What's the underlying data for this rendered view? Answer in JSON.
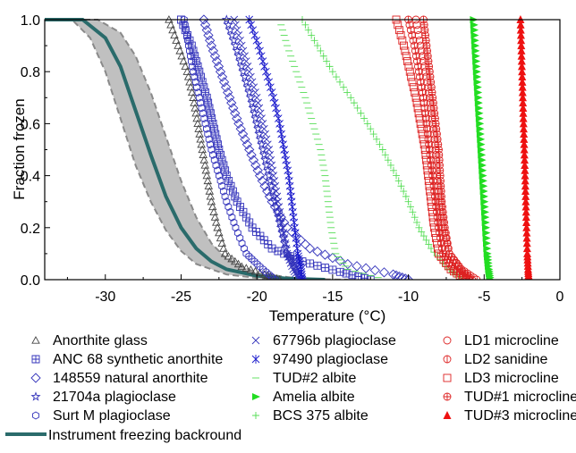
{
  "chart_data": {
    "type": "scatter",
    "title": "",
    "xlabel": "Temperature (°C)",
    "ylabel": "Fraction frozen",
    "xlim": [
      -34,
      0
    ],
    "ylim": [
      0,
      1.0
    ],
    "x_ticks": [
      "-30",
      "-25",
      "-20",
      "-15",
      "-10",
      "-5",
      "0"
    ],
    "y_ticks": [
      "0.0",
      "0.2",
      "0.4",
      "0.6",
      "0.8",
      "1.0"
    ],
    "grid": false,
    "legend_position": "below plot, three columns",
    "background_band": {
      "name": "Instrument freezing backround",
      "color": "#2a6b6b",
      "band_color": "#c0c0c0",
      "center": [
        [
          -34,
          1.0
        ],
        [
          -31.5,
          1.0
        ],
        [
          -30,
          0.93
        ],
        [
          -29,
          0.82
        ],
        [
          -28,
          0.65
        ],
        [
          -27,
          0.48
        ],
        [
          -26,
          0.32
        ],
        [
          -25,
          0.2
        ],
        [
          -24,
          0.12
        ],
        [
          -23,
          0.07
        ],
        [
          -22,
          0.04
        ],
        [
          -20,
          0.015
        ],
        [
          -18,
          0.004
        ],
        [
          -15.5,
          0.0
        ]
      ],
      "lower": [
        [
          -34,
          1.0
        ],
        [
          -32.2,
          1.0
        ],
        [
          -31,
          0.93
        ],
        [
          -30,
          0.8
        ],
        [
          -29,
          0.62
        ],
        [
          -28,
          0.44
        ],
        [
          -27,
          0.3
        ],
        [
          -26,
          0.19
        ],
        [
          -25,
          0.11
        ],
        [
          -24,
          0.06
        ],
        [
          -22,
          0.02
        ],
        [
          -19,
          0.0
        ]
      ],
      "upper": [
        [
          -34,
          1.0
        ],
        [
          -30.5,
          1.0
        ],
        [
          -29,
          0.95
        ],
        [
          -28,
          0.86
        ],
        [
          -27,
          0.72
        ],
        [
          -26,
          0.55
        ],
        [
          -25,
          0.38
        ],
        [
          -24,
          0.24
        ],
        [
          -23,
          0.14
        ],
        [
          -22,
          0.08
        ],
        [
          -20,
          0.025
        ],
        [
          -17,
          0.003
        ],
        [
          -14,
          0.0
        ]
      ]
    },
    "series": [
      {
        "name": "Anorthite glass",
        "marker": "triangle-open",
        "color": "#444444",
        "points": [
          [
            -25.8,
            1.0
          ],
          [
            -25.2,
            0.9
          ],
          [
            -24.6,
            0.8
          ],
          [
            -24.2,
            0.7
          ],
          [
            -23.9,
            0.6
          ],
          [
            -23.6,
            0.5
          ],
          [
            -23.3,
            0.4
          ],
          [
            -23.0,
            0.3
          ],
          [
            -22.6,
            0.2
          ],
          [
            -22.1,
            0.1
          ],
          [
            -21.0,
            0.05
          ],
          [
            -19.5,
            0.02
          ],
          [
            -18.5,
            0.0
          ]
        ]
      },
      {
        "name": "ANC 68 synthetic anorthite",
        "marker": "square-plus",
        "color": "#3333bb",
        "points": [
          [
            -25.0,
            1.0
          ],
          [
            -24.3,
            0.9
          ],
          [
            -23.8,
            0.8
          ],
          [
            -23.3,
            0.7
          ],
          [
            -22.9,
            0.6
          ],
          [
            -22.5,
            0.5
          ],
          [
            -22.0,
            0.4
          ],
          [
            -21.3,
            0.3
          ],
          [
            -20.3,
            0.2
          ],
          [
            -19.0,
            0.12
          ],
          [
            -17.0,
            0.07
          ],
          [
            -14.5,
            0.03
          ],
          [
            -12.5,
            0.0
          ]
        ]
      },
      {
        "name": "148559 natural anorthite",
        "marker": "diamond-open",
        "color": "#3333bb",
        "points": [
          [
            -23.5,
            1.0
          ],
          [
            -23.0,
            0.9
          ],
          [
            -22.4,
            0.8
          ],
          [
            -21.8,
            0.7
          ],
          [
            -21.2,
            0.6
          ],
          [
            -20.5,
            0.5
          ],
          [
            -19.8,
            0.4
          ],
          [
            -19.0,
            0.3
          ],
          [
            -18.0,
            0.2
          ],
          [
            -16.5,
            0.12
          ],
          [
            -14.0,
            0.06
          ],
          [
            -11.0,
            0.02
          ],
          [
            -10.0,
            0.0
          ]
        ]
      },
      {
        "name": "21704a plagioclase",
        "marker": "star-open",
        "color": "#3333bb",
        "points": [
          [
            -22.0,
            1.0
          ],
          [
            -21.4,
            0.9
          ],
          [
            -20.9,
            0.8
          ],
          [
            -20.4,
            0.7
          ],
          [
            -20.0,
            0.6
          ],
          [
            -19.6,
            0.5
          ],
          [
            -19.2,
            0.4
          ],
          [
            -18.8,
            0.3
          ],
          [
            -18.4,
            0.2
          ],
          [
            -18.0,
            0.1
          ],
          [
            -17.5,
            0.05
          ],
          [
            -17.0,
            0.0
          ]
        ]
      },
      {
        "name": "Surt M plagioclase",
        "marker": "hexagon-open",
        "color": "#3333bb",
        "points": [
          [
            -24.8,
            1.0
          ],
          [
            -24.5,
            0.9
          ],
          [
            -24.2,
            0.8
          ],
          [
            -23.8,
            0.7
          ],
          [
            -23.4,
            0.6
          ],
          [
            -23.0,
            0.5
          ],
          [
            -22.5,
            0.4
          ],
          [
            -22.0,
            0.3
          ],
          [
            -21.4,
            0.2
          ],
          [
            -20.7,
            0.1
          ],
          [
            -19.8,
            0.05
          ],
          [
            -18.8,
            0.0
          ]
        ]
      },
      {
        "name": "67796b plagioclase",
        "marker": "x",
        "color": "#3333bb",
        "points": [
          [
            -21.5,
            1.0
          ],
          [
            -21.0,
            0.9
          ],
          [
            -20.5,
            0.8
          ],
          [
            -20.0,
            0.7
          ],
          [
            -19.6,
            0.6
          ],
          [
            -19.2,
            0.5
          ],
          [
            -18.9,
            0.4
          ],
          [
            -18.6,
            0.3
          ],
          [
            -18.3,
            0.2
          ],
          [
            -18.0,
            0.1
          ],
          [
            -17.6,
            0.04
          ],
          [
            -17.2,
            0.0
          ]
        ]
      },
      {
        "name": "97490 plagioclase",
        "marker": "asterisk",
        "color": "#1a1acc",
        "points": [
          [
            -20.5,
            1.0
          ],
          [
            -19.9,
            0.9
          ],
          [
            -19.4,
            0.8
          ],
          [
            -18.9,
            0.7
          ],
          [
            -18.5,
            0.6
          ],
          [
            -18.2,
            0.5
          ],
          [
            -17.9,
            0.4
          ],
          [
            -17.7,
            0.3
          ],
          [
            -17.5,
            0.2
          ],
          [
            -17.3,
            0.1
          ],
          [
            -17.1,
            0.05
          ],
          [
            -17.0,
            0.0
          ]
        ]
      },
      {
        "name": "TUD#2 albite",
        "marker": "dash",
        "color": "#55dd55",
        "points": [
          [
            -18.5,
            1.0
          ],
          [
            -18.0,
            0.9
          ],
          [
            -17.4,
            0.8
          ],
          [
            -16.8,
            0.7
          ],
          [
            -16.3,
            0.6
          ],
          [
            -15.8,
            0.5
          ],
          [
            -15.5,
            0.4
          ],
          [
            -15.3,
            0.3
          ],
          [
            -15.1,
            0.2
          ],
          [
            -14.8,
            0.1
          ],
          [
            -14.0,
            0.04
          ],
          [
            -11.5,
            0.0
          ]
        ]
      },
      {
        "name": "Amelia albite",
        "marker": "triangle-right-filled",
        "color": "#22dd22",
        "points": [
          [
            -5.7,
            1.0
          ],
          [
            -5.6,
            0.9
          ],
          [
            -5.5,
            0.8
          ],
          [
            -5.4,
            0.7
          ],
          [
            -5.3,
            0.6
          ],
          [
            -5.2,
            0.5
          ],
          [
            -5.1,
            0.4
          ],
          [
            -5.0,
            0.3
          ],
          [
            -4.9,
            0.2
          ],
          [
            -4.8,
            0.1
          ],
          [
            -4.7,
            0.04
          ],
          [
            -4.6,
            0.0
          ]
        ]
      },
      {
        "name": "BCS 375 albite",
        "marker": "plus",
        "color": "#55dd55",
        "points": [
          [
            -17.0,
            1.0
          ],
          [
            -16.0,
            0.9
          ],
          [
            -15.0,
            0.8
          ],
          [
            -13.8,
            0.7
          ],
          [
            -12.7,
            0.6
          ],
          [
            -11.7,
            0.5
          ],
          [
            -10.8,
            0.4
          ],
          [
            -10.0,
            0.3
          ],
          [
            -9.3,
            0.2
          ],
          [
            -8.5,
            0.12
          ],
          [
            -7.5,
            0.05
          ],
          [
            -6.5,
            0.0
          ]
        ]
      },
      {
        "name": "LD1 microcline",
        "marker": "circle-open",
        "color": "#dd2222",
        "points": [
          [
            -9.5,
            1.0
          ],
          [
            -9.2,
            0.9
          ],
          [
            -8.9,
            0.8
          ],
          [
            -8.6,
            0.7
          ],
          [
            -8.4,
            0.6
          ],
          [
            -8.2,
            0.5
          ],
          [
            -8.1,
            0.4
          ],
          [
            -7.9,
            0.3
          ],
          [
            -7.7,
            0.2
          ],
          [
            -7.3,
            0.1
          ],
          [
            -6.5,
            0.04
          ],
          [
            -5.5,
            0.0
          ]
        ]
      },
      {
        "name": "LD2 sanidine",
        "marker": "circle-plus",
        "color": "#dd2222",
        "points": [
          [
            -10.0,
            1.0
          ],
          [
            -9.6,
            0.9
          ],
          [
            -9.3,
            0.8
          ],
          [
            -9.0,
            0.7
          ],
          [
            -8.8,
            0.6
          ],
          [
            -8.6,
            0.5
          ],
          [
            -8.4,
            0.4
          ],
          [
            -8.2,
            0.3
          ],
          [
            -8.0,
            0.2
          ],
          [
            -7.7,
            0.1
          ],
          [
            -7.0,
            0.04
          ],
          [
            -6.0,
            0.0
          ]
        ]
      },
      {
        "name": "LD3 microcline",
        "marker": "square-open",
        "color": "#dd2222",
        "points": [
          [
            -10.8,
            1.0
          ],
          [
            -10.3,
            0.9
          ],
          [
            -9.9,
            0.8
          ],
          [
            -9.5,
            0.7
          ],
          [
            -9.2,
            0.6
          ],
          [
            -8.9,
            0.5
          ],
          [
            -8.7,
            0.4
          ],
          [
            -8.5,
            0.3
          ],
          [
            -8.3,
            0.2
          ],
          [
            -8.0,
            0.1
          ],
          [
            -7.2,
            0.04
          ],
          [
            -6.2,
            0.0
          ]
        ]
      },
      {
        "name": "TUD#1 microcline",
        "marker": "circle-cross",
        "color": "#dd2222",
        "points": [
          [
            -9.0,
            1.0
          ],
          [
            -8.8,
            0.9
          ],
          [
            -8.6,
            0.8
          ],
          [
            -8.4,
            0.7
          ],
          [
            -8.2,
            0.6
          ],
          [
            -8.0,
            0.5
          ],
          [
            -7.9,
            0.4
          ],
          [
            -7.8,
            0.3
          ],
          [
            -7.6,
            0.2
          ],
          [
            -7.3,
            0.1
          ],
          [
            -6.6,
            0.04
          ],
          [
            -5.8,
            0.0
          ]
        ]
      },
      {
        "name": "TUD#3 microcline",
        "marker": "triangle-filled",
        "color": "#ee1111",
        "points": [
          [
            -2.6,
            1.0
          ],
          [
            -2.55,
            0.9
          ],
          [
            -2.5,
            0.8
          ],
          [
            -2.45,
            0.7
          ],
          [
            -2.4,
            0.6
          ],
          [
            -2.35,
            0.5
          ],
          [
            -2.3,
            0.4
          ],
          [
            -2.25,
            0.3
          ],
          [
            -2.2,
            0.2
          ],
          [
            -2.15,
            0.1
          ],
          [
            -2.1,
            0.04
          ],
          [
            -2.05,
            0.0
          ]
        ]
      }
    ],
    "legend_columns": [
      [
        "Anorthite glass",
        "ANC 68 synthetic anorthite",
        "148559 natural anorthite",
        "21704a plagioclase",
        "Surt M plagioclase"
      ],
      [
        "67796b plagioclase",
        "97490 plagioclase",
        "TUD#2 albite",
        "Amelia albite",
        "BCS 375 albite"
      ],
      [
        "LD1 microcline",
        "LD2 sanidine",
        "LD3 microcline",
        "TUD#1 microcline",
        "TUD#3 microcline"
      ]
    ]
  }
}
